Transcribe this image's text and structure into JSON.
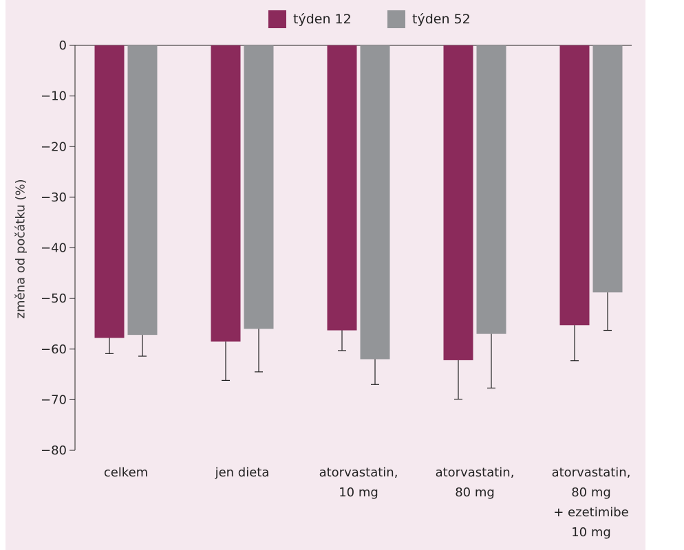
{
  "chart_data": {
    "type": "bar",
    "ylabel": "změna od počátku (%)",
    "ylim": [
      -80,
      0
    ],
    "yticks": [
      0,
      -10,
      -20,
      -30,
      -40,
      -50,
      -60,
      -70,
      -80
    ],
    "ytick_labels": [
      "0",
      "−10",
      "−20",
      "−30",
      "−40",
      "−50",
      "−60",
      "−70",
      "−80"
    ],
    "categories": [
      [
        "celkem"
      ],
      [
        "jen dieta"
      ],
      [
        "atorvastatin,",
        "10 mg"
      ],
      [
        "atorvastatin,",
        "80 mg"
      ],
      [
        "atorvastatin,",
        "80 mg",
        "+ ezetimibe",
        "10 mg"
      ]
    ],
    "series": [
      {
        "name": "týden 12",
        "color": "#8b2a5b",
        "values": [
          -57.8,
          -58.5,
          -56.3,
          -62.2,
          -55.3
        ],
        "error": [
          3.1,
          7.7,
          4.0,
          7.7,
          7.0
        ]
      },
      {
        "name": "týden 52",
        "color": "#939598",
        "values": [
          -57.2,
          -56.0,
          -62.0,
          -57.0,
          -48.8
        ],
        "error": [
          4.2,
          8.5,
          5.0,
          10.7,
          7.5
        ]
      }
    ],
    "legend_position": "top-center",
    "grid": false
  }
}
